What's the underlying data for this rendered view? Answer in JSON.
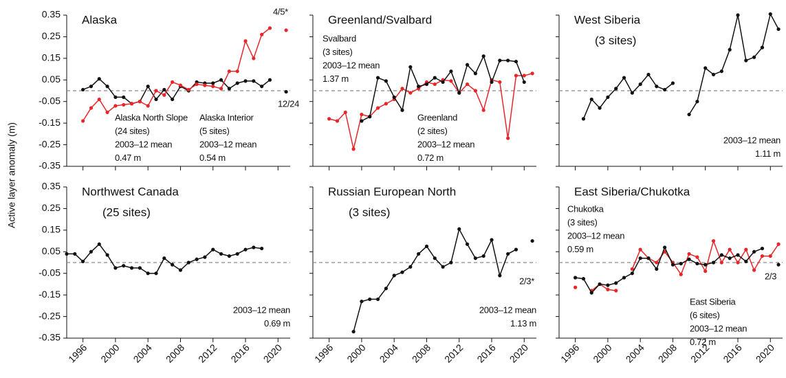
{
  "chart_data": [
    {
      "type": "line",
      "title": "Alaska",
      "ylabel": "Active layer anomaly (m)",
      "x": [
        1996,
        1997,
        1998,
        1999,
        2000,
        2001,
        2002,
        2003,
        2004,
        2005,
        2006,
        2007,
        2008,
        2009,
        2010,
        2011,
        2012,
        2013,
        2014,
        2015,
        2016,
        2017,
        2018,
        2019,
        2020,
        2021
      ],
      "series": [
        {
          "color": "#111111",
          "values": [
            0.005,
            0.02,
            0.055,
            0.02,
            -0.03,
            -0.03,
            -0.06,
            -0.05,
            0.02,
            -0.04,
            0.005,
            -0.04,
            0.02,
            0.0,
            0.04,
            0.035,
            0.035,
            0.05,
            0.01,
            0.035,
            0.045,
            0.045,
            0.02,
            0.05,
            null,
            -0.005
          ]
        },
        {
          "color": "#e8262a",
          "values": [
            -0.14,
            -0.08,
            -0.04,
            -0.1,
            -0.07,
            -0.065,
            -0.06,
            -0.05,
            -0.07,
            0.0,
            -0.02,
            0.04,
            0.025,
            0.005,
            0.03,
            0.025,
            0.02,
            0.01,
            0.09,
            0.09,
            0.23,
            0.15,
            0.26,
            0.29,
            null,
            0.28
          ]
        }
      ],
      "annotations": [
        {
          "color": "#e8262a",
          "lines": [
            "4/5*"
          ]
        },
        {
          "color": "#111111",
          "lines": [
            "12/24"
          ]
        },
        {
          "color": "#111111",
          "lines": [
            "Alaska North Slope",
            "(24 sites)",
            "2003–12 mean",
            "0.47 m"
          ]
        },
        {
          "color": "#e8262a",
          "lines": [
            "Alaska Interior",
            "(5 sites)",
            "2003–12 mean",
            "0.54 m"
          ]
        }
      ],
      "xlim": [
        1994,
        2021.5
      ],
      "xticks": [
        1996,
        2000,
        2004,
        2008,
        2012,
        2016,
        2020
      ],
      "ylim": [
        -0.35,
        0.35
      ],
      "yticks": [
        0.35,
        0.25,
        0.15,
        0.05,
        -0.05,
        -0.15,
        -0.25,
        -0.35
      ],
      "reference_line": 0,
      "ytick_labels": true,
      "xtick_labels": false
    },
    {
      "type": "line",
      "title": "Greenland/Svalbard",
      "x": [
        1996,
        1997,
        1998,
        1999,
        2000,
        2001,
        2002,
        2003,
        2004,
        2005,
        2006,
        2007,
        2008,
        2009,
        2010,
        2011,
        2012,
        2013,
        2014,
        2015,
        2016,
        2017,
        2018,
        2019,
        2020,
        2021
      ],
      "series": [
        {
          "color": "#e8262a",
          "values": [
            -0.13,
            -0.14,
            -0.1,
            -0.27,
            -0.11,
            -0.12,
            -0.08,
            -0.06,
            -0.04,
            0.01,
            -0.01,
            0.01,
            0.04,
            0.03,
            0.05,
            0.045,
            -0.01,
            0.03,
            0.0,
            -0.09,
            0.05,
            0.04,
            -0.22,
            0.07,
            0.07,
            0.08
          ]
        },
        {
          "color": "#111111",
          "values": [
            null,
            null,
            null,
            null,
            -0.14,
            -0.12,
            0.06,
            0.045,
            -0.03,
            -0.09,
            0.11,
            0.02,
            0.03,
            0.06,
            0.04,
            0.09,
            -0.01,
            0.12,
            0.08,
            0.16,
            0.04,
            0.14,
            0.14,
            0.135,
            0.04,
            null
          ]
        }
      ],
      "annotations": [
        {
          "color": "#111111",
          "lines": [
            "Svalbard",
            "(3 sites)",
            "2003–12 mean",
            "1.37 m"
          ]
        },
        {
          "color": "#e8262a",
          "lines": [
            "Greenland",
            "(2 sites)",
            "2003–12 mean",
            "0.72 m"
          ]
        }
      ],
      "xlim": [
        1994,
        2021.5
      ],
      "xticks": [
        1996,
        2000,
        2004,
        2008,
        2012,
        2016,
        2020
      ],
      "ylim": [
        -0.35,
        0.35
      ],
      "yticks": [
        0.35,
        0.25,
        0.15,
        0.05,
        -0.05,
        -0.15,
        -0.25,
        -0.35
      ],
      "reference_line": 0,
      "ytick_labels": false,
      "xtick_labels": false
    },
    {
      "type": "line",
      "title": "West Siberia",
      "subtitle": "(3 sites)",
      "x": [
        1996,
        1997,
        1998,
        1999,
        2000,
        2001,
        2002,
        2003,
        2004,
        2005,
        2006,
        2007,
        2008,
        2009,
        2010,
        2011,
        2012,
        2013,
        2014,
        2015,
        2016,
        2017,
        2018,
        2019,
        2020,
        2021
      ],
      "series": [
        {
          "color": "#111111",
          "values": [
            null,
            -0.13,
            -0.04,
            -0.08,
            -0.03,
            0.01,
            0.06,
            -0.01,
            0.03,
            0.075,
            0.02,
            0.005,
            0.035,
            null,
            -0.11,
            -0.05,
            0.105,
            0.075,
            0.09,
            0.19,
            0.35,
            0.14,
            0.155,
            0.2,
            0.355,
            0.285
          ]
        }
      ],
      "annotations": [
        {
          "color": "#111111",
          "lines": [
            "2003–12 mean",
            "1.11 m"
          ]
        }
      ],
      "xlim": [
        1994,
        2021.5
      ],
      "xticks": [
        1996,
        2000,
        2004,
        2008,
        2012,
        2016,
        2020
      ],
      "ylim": [
        -0.35,
        0.35
      ],
      "yticks": [
        0.35,
        0.25,
        0.15,
        0.05,
        -0.05,
        -0.15,
        -0.25,
        -0.35
      ],
      "reference_line": 0,
      "ytick_labels": false,
      "xtick_labels": false
    },
    {
      "type": "line",
      "title": "Northwest Canada",
      "subtitle": "(25 sites)",
      "x": [
        1994,
        1995,
        1996,
        1997,
        1998,
        1999,
        2000,
        2001,
        2002,
        2003,
        2004,
        2005,
        2006,
        2007,
        2008,
        2009,
        2010,
        2011,
        2012,
        2013,
        2014,
        2015,
        2016,
        2017,
        2018
      ],
      "series": [
        {
          "color": "#111111",
          "values": [
            0.04,
            0.04,
            0.005,
            0.05,
            0.085,
            0.035,
            -0.025,
            -0.015,
            -0.025,
            -0.025,
            -0.05,
            -0.05,
            0.02,
            -0.01,
            -0.035,
            0.0,
            0.015,
            0.025,
            0.06,
            0.04,
            0.03,
            0.04,
            0.06,
            0.07,
            0.065
          ]
        }
      ],
      "annotations": [
        {
          "color": "#111111",
          "lines": [
            "2003–12 mean",
            "0.69 m"
          ]
        }
      ],
      "xlim": [
        1994,
        2021.5
      ],
      "xticks": [
        1996,
        2000,
        2004,
        2008,
        2012,
        2016,
        2020
      ],
      "ylim": [
        -0.35,
        0.35
      ],
      "yticks": [
        0.35,
        0.25,
        0.15,
        0.05,
        -0.05,
        -0.15,
        -0.25,
        -0.35
      ],
      "reference_line": 0,
      "ytick_labels": true,
      "xtick_labels": true
    },
    {
      "type": "line",
      "title": "Russian European North",
      "subtitle": "(3 sites)",
      "x": [
        1999,
        2000,
        2001,
        2002,
        2003,
        2004,
        2005,
        2006,
        2007,
        2008,
        2009,
        2010,
        2011,
        2012,
        2013,
        2014,
        2015,
        2016,
        2017,
        2018,
        2019,
        2020,
        2021
      ],
      "series": [
        {
          "color": "#111111",
          "values": [
            -0.32,
            -0.18,
            -0.17,
            -0.17,
            -0.12,
            -0.06,
            -0.045,
            -0.02,
            0.04,
            0.075,
            0.02,
            -0.02,
            0.0,
            0.155,
            0.085,
            0.02,
            0.03,
            0.105,
            -0.06,
            0.04,
            0.06,
            null,
            0.1
          ]
        }
      ],
      "annotations": [
        {
          "color": "#111111",
          "lines": [
            "2/3*"
          ]
        },
        {
          "color": "#111111",
          "lines": [
            "2003–12 mean",
            "1.13 m"
          ]
        }
      ],
      "xlim": [
        1994,
        2021.5
      ],
      "xticks": [
        1996,
        2000,
        2004,
        2008,
        2012,
        2016,
        2020
      ],
      "ylim": [
        -0.35,
        0.35
      ],
      "yticks": [
        0.35,
        0.25,
        0.15,
        0.05,
        -0.05,
        -0.15,
        -0.25,
        -0.35
      ],
      "reference_line": 0,
      "ytick_labels": false,
      "xtick_labels": true
    },
    {
      "type": "line",
      "title": "East Siberia/Chukotka",
      "x": [
        1996,
        1997,
        1998,
        1999,
        2000,
        2001,
        2002,
        2003,
        2004,
        2005,
        2006,
        2007,
        2008,
        2009,
        2010,
        2011,
        2012,
        2013,
        2014,
        2015,
        2016,
        2017,
        2018,
        2019,
        2020,
        2021
      ],
      "series": [
        {
          "color": "#e8262a",
          "values": [
            -0.115,
            null,
            -0.13,
            -0.1,
            -0.125,
            -0.13,
            null,
            -0.03,
            0.06,
            0.02,
            0.0,
            0.05,
            0.0,
            -0.055,
            0.04,
            0.025,
            -0.04,
            0.1,
            0.0,
            0.06,
            0.0,
            0.06,
            -0.035,
            0.03,
            0.03,
            0.085
          ]
        },
        {
          "color": "#111111",
          "values": [
            -0.07,
            -0.075,
            -0.14,
            -0.1,
            -0.105,
            -0.095,
            -0.07,
            -0.05,
            0.02,
            0.02,
            -0.03,
            0.07,
            -0.01,
            -0.005,
            0.015,
            -0.005,
            -0.01,
            0.0,
            0.035,
            0.02,
            0.035,
            0.005,
            0.05,
            0.065,
            null,
            -0.01
          ]
        }
      ],
      "annotations": [
        {
          "color": "#111111",
          "lines": [
            "Chukotka",
            "(3 sites)",
            "2003–12 mean",
            "0.59 m"
          ]
        },
        {
          "color": "#111111",
          "lines": [
            "2/3"
          ]
        },
        {
          "color": "#e8262a",
          "lines": [
            "East Siberia",
            "(6 sites)",
            "2003–12 mean",
            "0.72 m"
          ]
        }
      ],
      "xlim": [
        1994,
        2021.5
      ],
      "xticks": [
        1996,
        2000,
        2004,
        2008,
        2012,
        2016,
        2020
      ],
      "ylim": [
        -0.35,
        0.35
      ],
      "yticks": [
        0.35,
        0.25,
        0.15,
        0.05,
        -0.05,
        -0.15,
        -0.25,
        -0.35
      ],
      "reference_line": 0,
      "ytick_labels": false,
      "xtick_labels": true
    }
  ]
}
